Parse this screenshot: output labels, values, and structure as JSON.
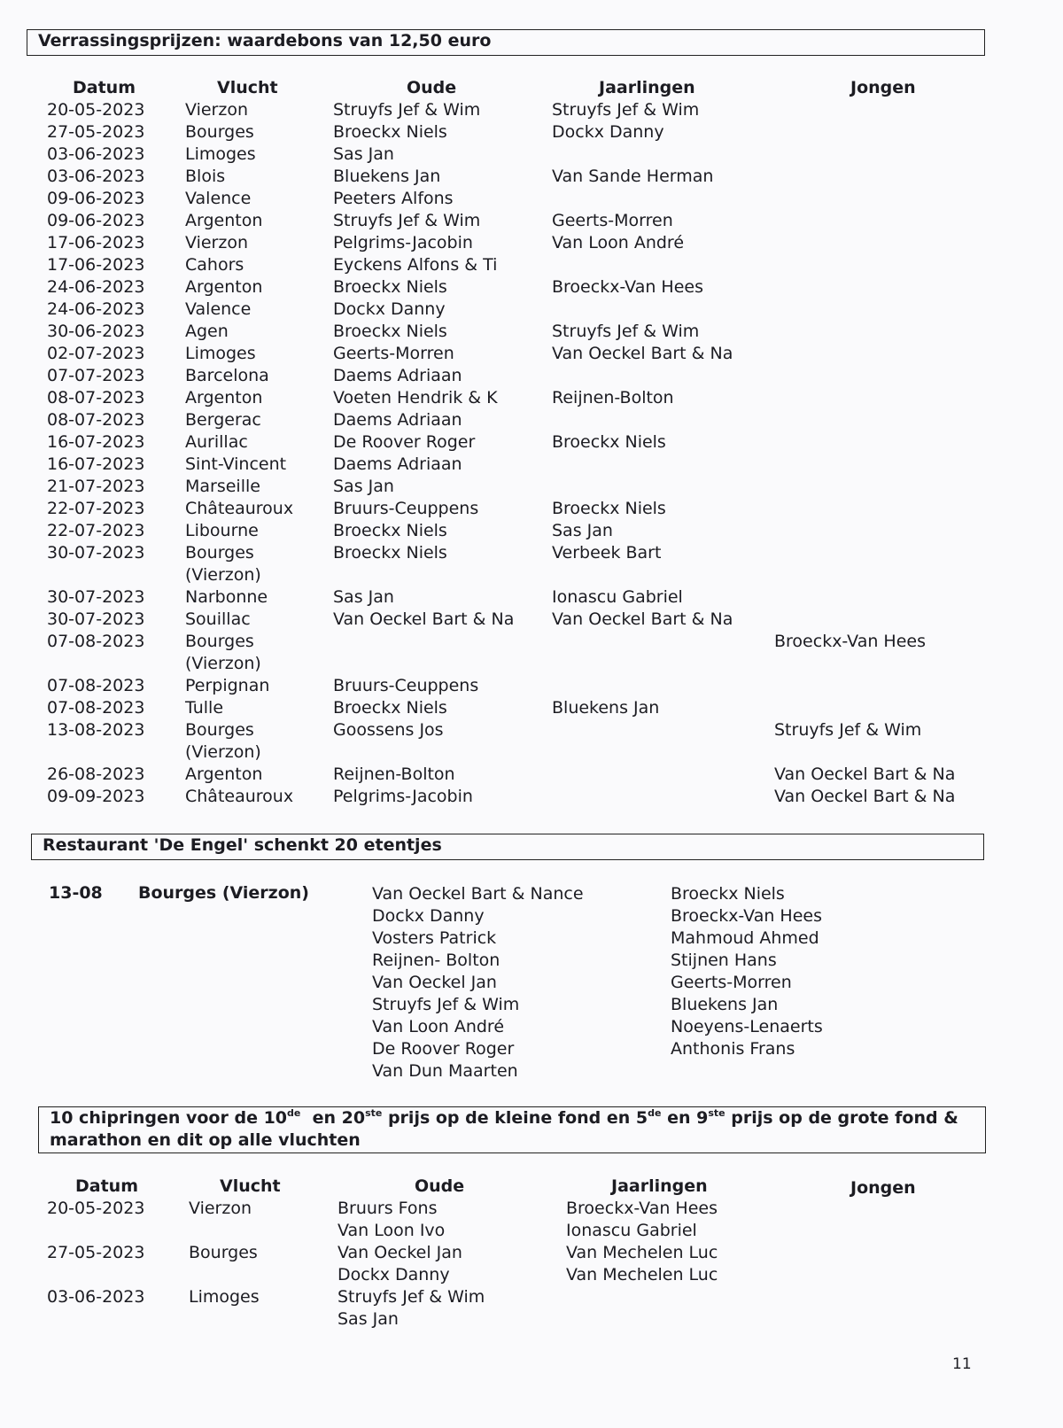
{
  "section1": {
    "title": "Verrassingsprijzen: waardebons van 12,50 euro",
    "headers": {
      "datum": "Datum",
      "vlucht": "Vlucht",
      "oude": "Oude",
      "jaarlingen": "Jaarlingen",
      "jongen": "Jongen"
    },
    "rows": [
      {
        "datum": "20-05-2023",
        "vlucht": "Vierzon",
        "oude": "Struyfs Jef & Wim",
        "jaarlingen": "Struyfs Jef & Wim",
        "jongen": ""
      },
      {
        "datum": "27-05-2023",
        "vlucht": "Bourges",
        "oude": "Broeckx Niels",
        "jaarlingen": "Dockx Danny",
        "jongen": ""
      },
      {
        "datum": "03-06-2023",
        "vlucht": "Limoges",
        "oude": "Sas Jan",
        "jaarlingen": "",
        "jongen": ""
      },
      {
        "datum": "03-06-2023",
        "vlucht": "Blois",
        "oude": "Bluekens Jan",
        "jaarlingen": "Van Sande Herman",
        "jongen": ""
      },
      {
        "datum": "09-06-2023",
        "vlucht": "Valence",
        "oude": "Peeters Alfons",
        "jaarlingen": "",
        "jongen": ""
      },
      {
        "datum": "09-06-2023",
        "vlucht": "Argenton",
        "oude": "Struyfs Jef & Wim",
        "jaarlingen": "Geerts-Morren",
        "jongen": ""
      },
      {
        "datum": "17-06-2023",
        "vlucht": "Vierzon",
        "oude": "Pelgrims-Jacobin",
        "jaarlingen": "Van Loon André",
        "jongen": ""
      },
      {
        "datum": "17-06-2023",
        "vlucht": "Cahors",
        "oude": "Eyckens Alfons & Ti",
        "jaarlingen": "",
        "jongen": ""
      },
      {
        "datum": "24-06-2023",
        "vlucht": "Argenton",
        "oude": "Broeckx Niels",
        "jaarlingen": "Broeckx-Van Hees",
        "jongen": ""
      },
      {
        "datum": "24-06-2023",
        "vlucht": "Valence",
        "oude": "Dockx Danny",
        "jaarlingen": "",
        "jongen": ""
      },
      {
        "datum": "30-06-2023",
        "vlucht": "Agen",
        "oude": "Broeckx Niels",
        "jaarlingen": "Struyfs Jef & Wim",
        "jongen": ""
      },
      {
        "datum": "02-07-2023",
        "vlucht": "Limoges",
        "oude": "Geerts-Morren",
        "jaarlingen": "Van Oeckel Bart & Na",
        "jongen": ""
      },
      {
        "datum": "07-07-2023",
        "vlucht": "Barcelona",
        "oude": "Daems Adriaan",
        "jaarlingen": "",
        "jongen": ""
      },
      {
        "datum": "08-07-2023",
        "vlucht": "Argenton",
        "oude": "Voeten Hendrik & K",
        "jaarlingen": "Reijnen-Bolton",
        "jongen": ""
      },
      {
        "datum": "08-07-2023",
        "vlucht": "Bergerac",
        "oude": "Daems Adriaan",
        "jaarlingen": "",
        "jongen": ""
      },
      {
        "datum": "16-07-2023",
        "vlucht": "Aurillac",
        "oude": "De Roover Roger",
        "jaarlingen": "Broeckx Niels",
        "jongen": ""
      },
      {
        "datum": "16-07-2023",
        "vlucht": "Sint-Vincent",
        "oude": "Daems Adriaan",
        "jaarlingen": "",
        "jongen": ""
      },
      {
        "datum": "21-07-2023",
        "vlucht": "Marseille",
        "oude": "Sas Jan",
        "jaarlingen": "",
        "jongen": ""
      },
      {
        "datum": "22-07-2023",
        "vlucht": "Châteauroux",
        "oude": "Bruurs-Ceuppens",
        "jaarlingen": "Broeckx Niels",
        "jongen": ""
      },
      {
        "datum": "22-07-2023",
        "vlucht": "Libourne",
        "oude": "Broeckx Niels",
        "jaarlingen": "Sas Jan",
        "jongen": ""
      },
      {
        "datum": "30-07-2023",
        "vlucht": "Bourges\n(Vierzon)",
        "oude": "Broeckx Niels",
        "jaarlingen": "Verbeek Bart",
        "jongen": ""
      },
      {
        "datum": "30-07-2023",
        "vlucht": "Narbonne",
        "oude": "Sas Jan",
        "jaarlingen": "Ionascu Gabriel",
        "jongen": ""
      },
      {
        "datum": "30-07-2023",
        "vlucht": "Souillac",
        "oude": "Van Oeckel Bart & Na",
        "jaarlingen": "Van Oeckel Bart & Na",
        "jongen": ""
      },
      {
        "datum": "07-08-2023",
        "vlucht": "Bourges\n(Vierzon)",
        "oude": "",
        "jaarlingen": "",
        "jongen": "Broeckx-Van Hees"
      },
      {
        "datum": "07-08-2023",
        "vlucht": "Perpignan",
        "oude": "Bruurs-Ceuppens",
        "jaarlingen": "",
        "jongen": ""
      },
      {
        "datum": "07-08-2023",
        "vlucht": "Tulle",
        "oude": "Broeckx Niels",
        "jaarlingen": "Bluekens Jan",
        "jongen": ""
      },
      {
        "datum": "13-08-2023",
        "vlucht": "Bourges\n(Vierzon)",
        "oude": "Goossens Jos",
        "jaarlingen": "",
        "jongen": "Struyfs Jef & Wim"
      },
      {
        "datum": "26-08-2023",
        "vlucht": "Argenton",
        "oude": "Reijnen-Bolton",
        "jaarlingen": "",
        "jongen": "Van Oeckel Bart & Na"
      },
      {
        "datum": "09-09-2023",
        "vlucht": "Châteauroux",
        "oude": "Pelgrims-Jacobin",
        "jaarlingen": "",
        "jongen": "Van Oeckel Bart & Na"
      }
    ]
  },
  "section2": {
    "title": "Restaurant 'De Engel' schenkt 20 etentjes",
    "datum": "13-08",
    "vlucht": "Bourges (Vierzon)",
    "winners_col1": [
      "Van Oeckel Bart & Nance",
      "Dockx Danny",
      "Vosters Patrick",
      "Reijnen- Bolton",
      "Van Oeckel Jan",
      "Struyfs Jef & Wim",
      "Van Loon André",
      "De Roover Roger",
      "Van Dun Maarten"
    ],
    "winners_col2": [
      "Broeckx Niels",
      "Broeckx-Van Hees",
      "Mahmoud Ahmed",
      "Stijnen Hans",
      "Geerts-Morren",
      "Bluekens Jan",
      "Noeyens-Lenaerts",
      "Anthonis Frans"
    ]
  },
  "section3": {
    "title_parts": [
      "10 chipringen voor de 10",
      "de",
      "  en 20",
      "ste",
      " prijs op de kleine fond en 5",
      "de",
      " en 9",
      "ste",
      " prijs op de grote fond & marathon en dit op alle vluchten"
    ],
    "headers": {
      "datum": "Datum",
      "vlucht": "Vlucht",
      "oude": "Oude",
      "jaarlingen": "Jaarlingen",
      "jongen": "Jongen"
    },
    "rows": [
      {
        "datum": "20-05-2023",
        "vlucht": "Vierzon",
        "oude": "Bruurs Fons\nVan Loon Ivo",
        "jaarlingen": "Broeckx-Van Hees\nIonascu Gabriel",
        "jongen": ""
      },
      {
        "datum": "27-05-2023",
        "vlucht": "Bourges",
        "oude": "Van Oeckel Jan\nDockx Danny",
        "jaarlingen": "Van Mechelen Luc\nVan Mechelen Luc",
        "jongen": ""
      },
      {
        "datum": "03-06-2023",
        "vlucht": "Limoges",
        "oude": "Struyfs Jef & Wim\nSas Jan",
        "jaarlingen": "",
        "jongen": ""
      }
    ]
  },
  "page_number": "11"
}
